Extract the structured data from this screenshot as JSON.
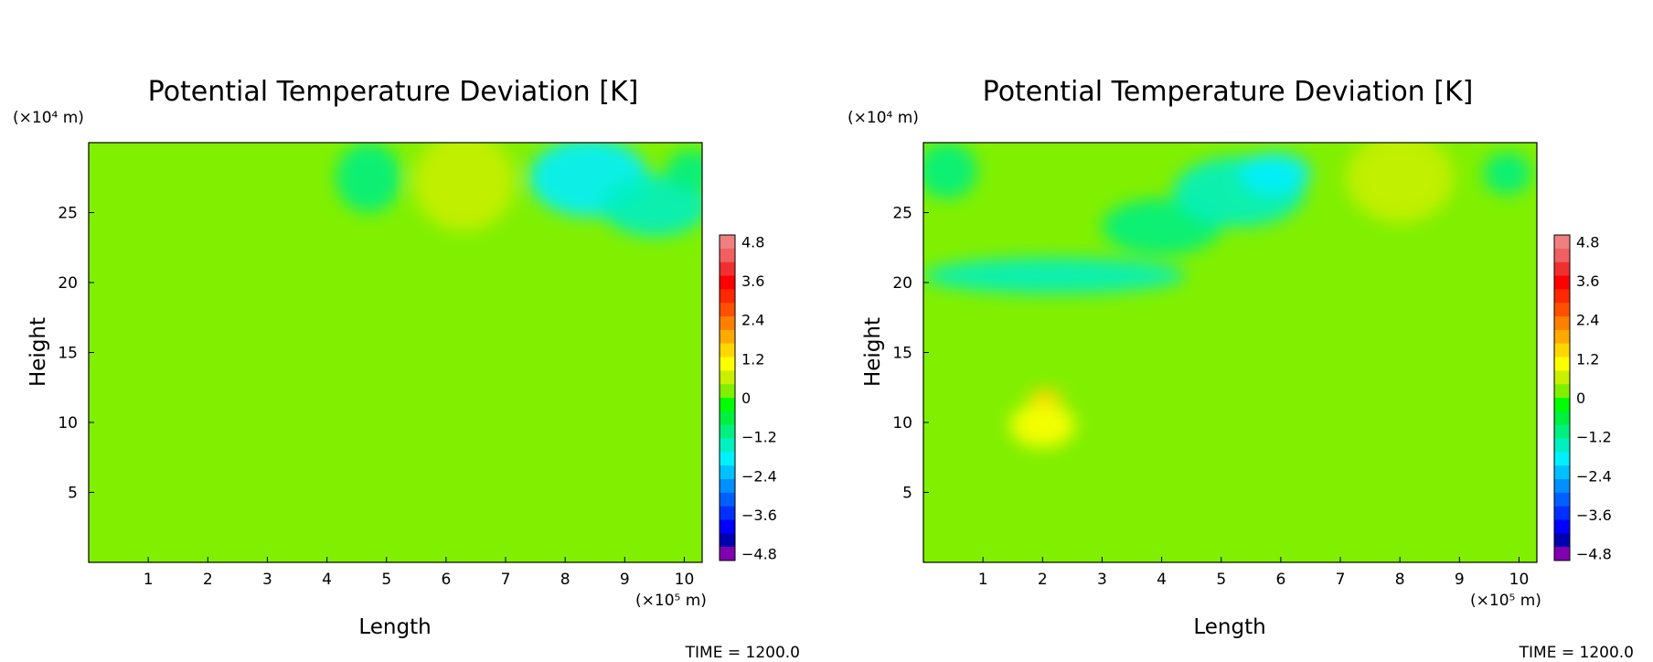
{
  "chart_data": [
    {
      "type": "heatmap",
      "title": "Potential Temperature Deviation [K]",
      "xlabel": "Length",
      "ylabel": "Height",
      "x_unit": "(×10⁵ m)",
      "y_unit": "(×10⁴ m)",
      "xlim": [
        0,
        10.3
      ],
      "ylim": [
        0,
        30
      ],
      "x_ticks": [
        "1",
        "2",
        "3",
        "4",
        "5",
        "6",
        "7",
        "8",
        "9",
        "10"
      ],
      "y_ticks": [
        "5",
        "10",
        "15",
        "20",
        "25"
      ],
      "background_value": 0.2,
      "features": [
        {
          "x": 4.7,
          "y": 27.5,
          "rx": 0.55,
          "ry": 2.5,
          "value": -0.8
        },
        {
          "x": 6.3,
          "y": 27.2,
          "rx": 0.85,
          "ry": 3.5,
          "value": 0.8
        },
        {
          "x": 8.4,
          "y": 27.5,
          "rx": 1.0,
          "ry": 2.8,
          "value": -1.6
        },
        {
          "x": 9.5,
          "y": 25.5,
          "rx": 0.9,
          "ry": 2.2,
          "value": -1.2
        },
        {
          "x": 10.1,
          "y": 28.0,
          "rx": 0.4,
          "ry": 1.5,
          "value": -0.8
        }
      ],
      "time_label": "TIME = 1200.0"
    },
    {
      "type": "heatmap",
      "title": "Potential Temperature Deviation [K]",
      "xlabel": "Length",
      "ylabel": "Height",
      "x_unit": "(×10⁵ m)",
      "y_unit": "(×10⁴ m)",
      "xlim": [
        0,
        10.3
      ],
      "ylim": [
        0,
        30
      ],
      "x_ticks": [
        "1",
        "2",
        "3",
        "4",
        "5",
        "6",
        "7",
        "8",
        "9",
        "10"
      ],
      "y_ticks": [
        "5",
        "10",
        "15",
        "20",
        "25"
      ],
      "background_value": 0.2,
      "features": [
        {
          "x": 0.4,
          "y": 28.0,
          "rx": 0.5,
          "ry": 2.0,
          "value": -0.8
        },
        {
          "x": 2.2,
          "y": 20.5,
          "rx": 2.2,
          "ry": 1.3,
          "value": -1.2
        },
        {
          "x": 4.0,
          "y": 24.0,
          "rx": 1.0,
          "ry": 2.0,
          "value": -0.8
        },
        {
          "x": 5.3,
          "y": 26.5,
          "rx": 1.1,
          "ry": 2.5,
          "value": -1.2
        },
        {
          "x": 5.9,
          "y": 27.8,
          "rx": 0.6,
          "ry": 1.5,
          "value": -1.6
        },
        {
          "x": 8.0,
          "y": 27.5,
          "rx": 0.9,
          "ry": 3.2,
          "value": 0.8
        },
        {
          "x": 9.8,
          "y": 27.8,
          "rx": 0.4,
          "ry": 1.5,
          "value": -0.8
        },
        {
          "x": 2.0,
          "y": 9.8,
          "rx": 0.55,
          "ry": 1.6,
          "value": 1.2
        },
        {
          "x": 2.05,
          "y": 11.8,
          "rx": 0.3,
          "ry": 0.6,
          "value": 1.6
        }
      ],
      "time_label": "TIME = 1200.0"
    }
  ],
  "colorbar": {
    "tick_labels": [
      "4.8",
      "3.6",
      "2.4",
      "1.2",
      "0",
      "−1.2",
      "−2.4",
      "−3.6",
      "−4.8"
    ],
    "min": -4.8,
    "max": 4.8,
    "levels": 24,
    "colors_top_to_bottom": [
      "#f08080",
      "#f06060",
      "#f03030",
      "#ff0000",
      "#ff2800",
      "#ff5000",
      "#ff8000",
      "#ffaa00",
      "#ffd700",
      "#ffff00",
      "#c8f000",
      "#80f000",
      "#00ff00",
      "#00f040",
      "#00f080",
      "#00f0c0",
      "#00f0ff",
      "#00c0ff",
      "#0090ff",
      "#0060ff",
      "#0030ff",
      "#0000ff",
      "#0000b0",
      "#8000b0"
    ]
  }
}
